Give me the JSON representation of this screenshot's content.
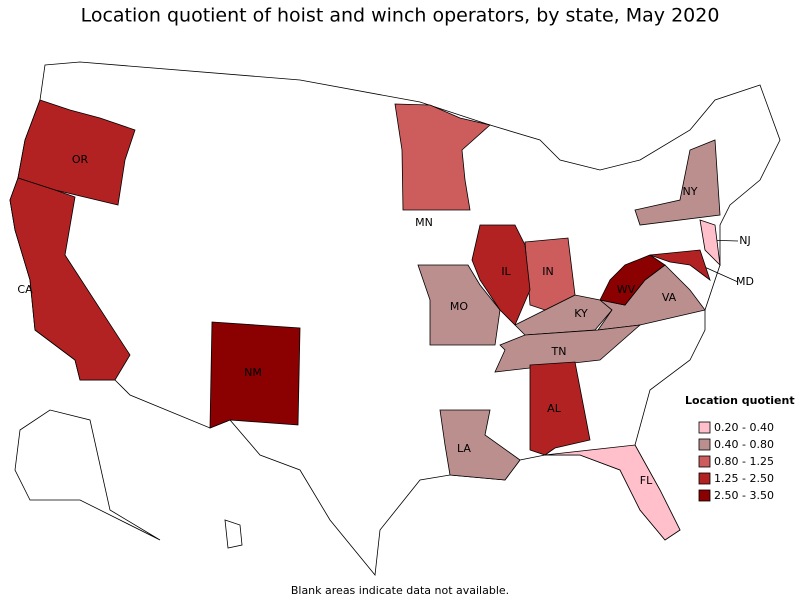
{
  "title": "Location quotient of hoist and winch operators, by state, May 2020",
  "legend": {
    "title": "Location quotient",
    "classes": [
      {
        "label": "0.20 - 0.40",
        "color": "#ffc0cb",
        "states": [
          "NJ",
          "FL"
        ]
      },
      {
        "label": "0.40 - 0.80",
        "color": "#bc8f8f",
        "states": [
          "NY",
          "MO",
          "KY",
          "VA",
          "TN",
          "LA"
        ]
      },
      {
        "label": "0.80 - 1.25",
        "color": "#cd5c5c",
        "states": [
          "MN",
          "IN"
        ]
      },
      {
        "label": "1.25 - 2.50",
        "color": "#b22222",
        "states": [
          "OR",
          "CA",
          "IL",
          "AL",
          "MD"
        ]
      },
      {
        "label": "2.50 - 3.50",
        "color": "#8b0000",
        "states": [
          "NM",
          "WV"
        ]
      }
    ]
  },
  "footnote": "Blank areas indicate data not available."
}
